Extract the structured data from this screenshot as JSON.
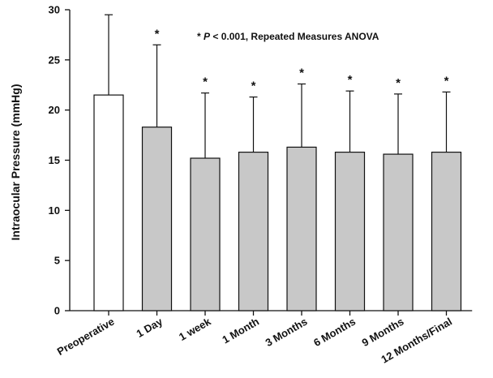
{
  "chart_data": {
    "type": "bar",
    "categories": [
      "Preoperative",
      "1 Day",
      "1 week",
      "1 Month",
      "3 Months",
      "6 Months",
      "9 Months",
      "12 Months/Final"
    ],
    "values": [
      21.5,
      18.3,
      15.2,
      15.8,
      16.3,
      15.8,
      15.6,
      15.8
    ],
    "error_upper": [
      29.5,
      26.5,
      21.7,
      21.3,
      22.6,
      21.9,
      21.6,
      21.8
    ],
    "significance_marks": [
      "",
      "*",
      "*",
      "*",
      "*",
      "*",
      "*",
      "*"
    ],
    "title": "",
    "xlabel": "",
    "ylabel": "Intraocular Pressure (mmHg)",
    "ylim": [
      0,
      30
    ],
    "yticks": [
      0,
      5,
      10,
      15,
      20,
      25,
      30
    ],
    "annotation": {
      "prefix": "* ",
      "italic": "P",
      "suffix": " < 0.001, Repeated Measures ANOVA"
    },
    "grid": false,
    "legend": "none",
    "colors": {
      "first_bar_fill": "#ffffff",
      "bar_fill": "#c8c8c8",
      "stroke": "#111111"
    }
  }
}
